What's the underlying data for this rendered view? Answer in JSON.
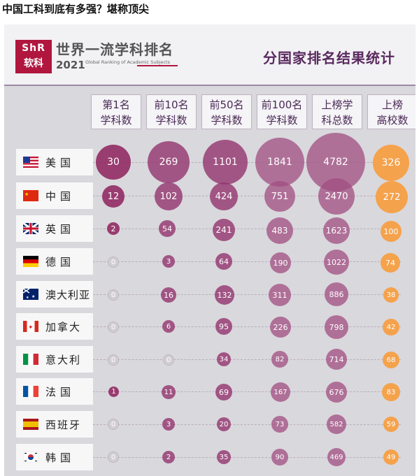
{
  "article": {
    "title": "中国工科到底有多强？堪称顶尖"
  },
  "header": {
    "logo_top": "ShR",
    "logo_brand": "软科",
    "gras_title": "世界一流学科排名",
    "gras_year": "2021",
    "gras_sub": "Global Ranking of Academic Subjects",
    "page_title": "分国家排名结果统计"
  },
  "columns": [
    {
      "line1": "第1名",
      "line2": "学科数"
    },
    {
      "line1": "前10名",
      "line2": "学科数"
    },
    {
      "line1": "前50名",
      "line2": "学科数"
    },
    {
      "line1": "前100名",
      "line2": "学科数"
    },
    {
      "line1": "上榜学",
      "line2": "科总数"
    },
    {
      "line1": "上榜",
      "line2": "高校数"
    }
  ],
  "rows": [
    {
      "country": "美国",
      "values": [
        "30",
        "269",
        "1101",
        "1841",
        "4782",
        "326"
      ]
    },
    {
      "country": "中国",
      "values": [
        "12",
        "102",
        "424",
        "751",
        "2470",
        "272"
      ]
    },
    {
      "country": "英国",
      "values": [
        "2",
        "54",
        "241",
        "483",
        "1623",
        "100"
      ]
    },
    {
      "country": "德国",
      "values": [
        "0",
        "3",
        "64",
        "190",
        "1022",
        "74"
      ]
    },
    {
      "country": "澳大利亚",
      "values": [
        "0",
        "16",
        "132",
        "311",
        "886",
        "38"
      ]
    },
    {
      "country": "加拿大",
      "values": [
        "0",
        "6",
        "95",
        "226",
        "798",
        "42"
      ]
    },
    {
      "country": "意大利",
      "values": [
        "0",
        "0",
        "34",
        "82",
        "714",
        "68"
      ]
    },
    {
      "country": "法国",
      "values": [
        "1",
        "11",
        "69",
        "167",
        "676",
        "83"
      ]
    },
    {
      "country": "西班牙",
      "values": [
        "0",
        "3",
        "20",
        "73",
        "582",
        "59"
      ]
    },
    {
      "country": "韩国",
      "values": [
        "0",
        "2",
        "35",
        "90",
        "469",
        "49"
      ]
    }
  ],
  "colors": {
    "purple": "#8f2660",
    "orange": "#f5a24c",
    "brand_red": "#b0163e"
  }
}
